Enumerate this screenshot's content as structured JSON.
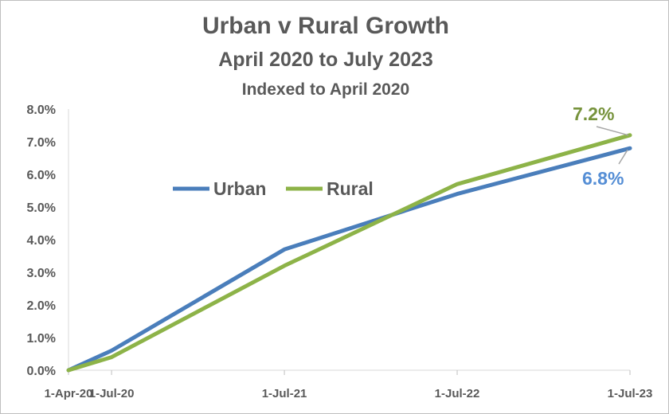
{
  "chart_data": {
    "type": "line",
    "title": "Urban v Rural Growth",
    "subtitle": "April 2020 to July 2023",
    "subtitle2": "Indexed to April 2020",
    "xlabel": "",
    "ylabel": "",
    "categories": [
      "1-Apr-20",
      "1-Jul-20",
      "1-Jul-21",
      "1-Jul-22",
      "1-Jul-23"
    ],
    "x_dates": [
      "2020-04-01",
      "2020-07-01",
      "2021-07-01",
      "2022-07-01",
      "2023-07-01"
    ],
    "ylim": [
      0,
      0.08
    ],
    "yticks": [
      "0.0%",
      "1.0%",
      "2.0%",
      "3.0%",
      "4.0%",
      "5.0%",
      "6.0%",
      "7.0%",
      "8.0%"
    ],
    "grid": false,
    "legend_position": "middle-left",
    "series": [
      {
        "name": "Urban",
        "color": "#4a7ebb",
        "values": [
          0,
          0.006,
          0.037,
          0.054,
          0.068
        ]
      },
      {
        "name": "Rural",
        "color": "#8db348",
        "values": [
          0,
          0.004,
          0.032,
          0.057,
          0.072
        ]
      }
    ],
    "annotations": [
      {
        "series": "Rural",
        "text": "7.2%",
        "color": "#77933c"
      },
      {
        "series": "Urban",
        "text": "6.8%",
        "color": "#558ed5"
      }
    ]
  }
}
